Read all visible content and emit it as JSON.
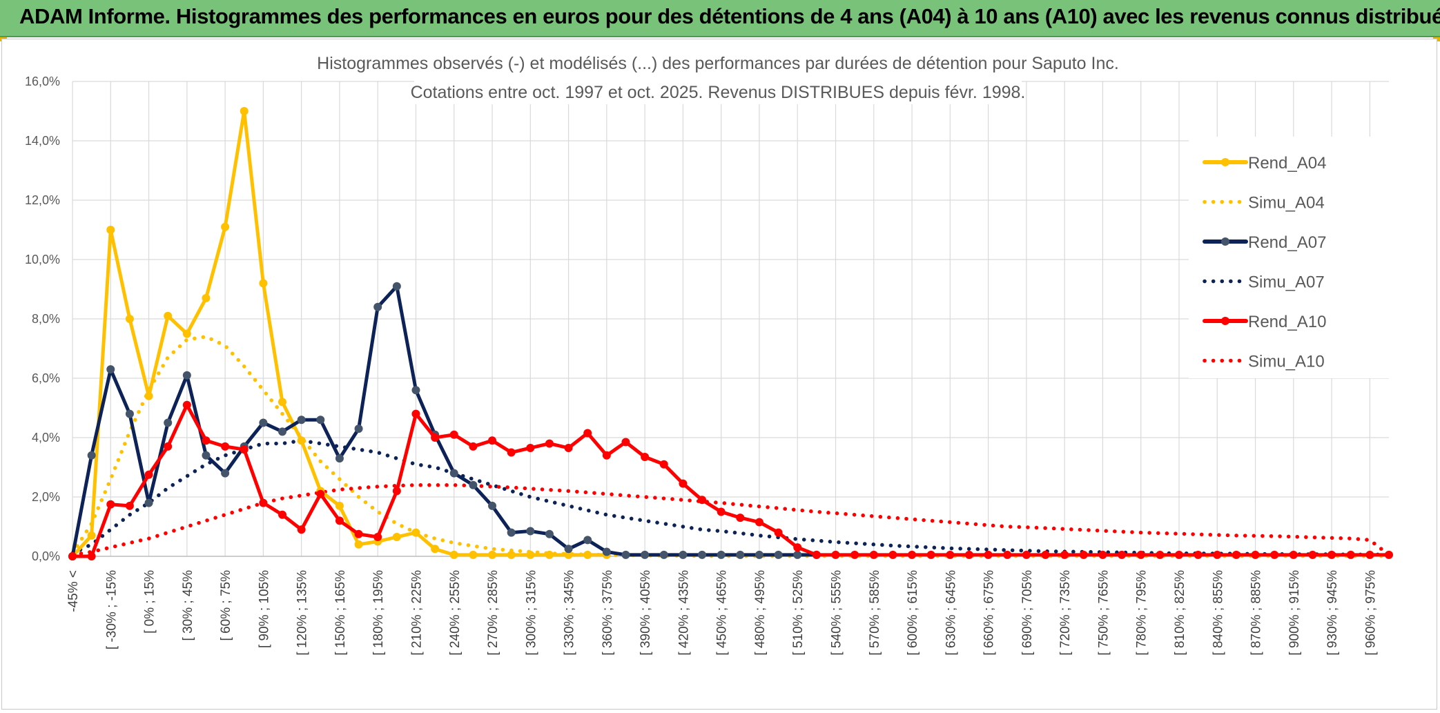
{
  "header": {
    "title": "ADAM Informe. Histogrammes des performances en euros pour des détentions de 4 ans (A04) à 10 ans (A10) avec les revenus connus distribués"
  },
  "colors": {
    "banner": "#79c27a",
    "A04": "#ffc000",
    "A07": "#0d2357",
    "A07_marker": "#44546a",
    "A10": "#ff0000",
    "grid": "#d9d9d9"
  },
  "chart_data": {
    "type": "line",
    "title": [
      "Histogrammes observés (-) et modélisés (...) des performances par durées de détention pour Saputo Inc.",
      "Cotations entre oct. 1997 et oct. 2025. Revenus DISTRIBUES depuis févr. 1998."
    ],
    "xlabel": "",
    "ylabel": "",
    "ylim": [
      0,
      16
    ],
    "y_ticks": [
      "0,0%",
      "2,0%",
      "4,0%",
      "6,0%",
      "8,0%",
      "10,0%",
      "12,0%",
      "14,0%",
      "16,0%"
    ],
    "y_unit": "%",
    "grid": true,
    "legend_position": "right",
    "x_labels": [
      "-45% <",
      "[ -30% ; -15%",
      "[ 0% ; 15%",
      "[ 30% ; 45%",
      "[ 60% ; 75%",
      "[ 90% ; 105%",
      "[ 120% ; 135%",
      "[ 150% ; 165%",
      "[ 180% ; 195%",
      "[ 210% ; 225%",
      "[ 240% ; 255%",
      "[ 270% ; 285%",
      "[ 300% ; 315%",
      "[ 330% ; 345%",
      "[ 360% ; 375%",
      "[ 390% ; 405%",
      "[ 420% ; 435%",
      "[ 450% ; 465%",
      "[ 480% ; 495%",
      "[ 510% ; 525%",
      "[ 540% ; 555%",
      "[ 570% ; 585%",
      "[ 600% ; 615%",
      "[ 630% ; 645%",
      "[ 660% ; 675%",
      "[ 690% ; 705%",
      "[ 720% ; 735%",
      "[ 750% ; 765%",
      "[ 780% ; 795%",
      "[ 810% ; 825%",
      "[ 840% ; 855%",
      "[ 870% ; 885%",
      "[ 900% ; 915%",
      "[ 930% ; 945%",
      "[ 960% ; 975%"
    ],
    "series": [
      {
        "name": "Rend_A04",
        "style": "solid",
        "markers": true,
        "color": "#ffc000",
        "marker_color": "#ffc000",
        "values": [
          0,
          0.7,
          11.0,
          8.0,
          5.4,
          8.1,
          7.5,
          8.7,
          11.1,
          15.0,
          9.2,
          5.2,
          3.9,
          2.2,
          1.7,
          0.4,
          0.5,
          0.65,
          0.8,
          0.25,
          0.05,
          0.05,
          0.05,
          0.05,
          0.05,
          0.05,
          0.05,
          0.05,
          0.05
        ]
      },
      {
        "name": "Simu_A04",
        "style": "dotted",
        "markers": false,
        "color": "#ffc000",
        "values": [
          0.1,
          1.1,
          2.6,
          4.2,
          5.6,
          6.7,
          7.3,
          7.4,
          7.1,
          6.4,
          5.6,
          4.8,
          4.0,
          3.2,
          2.6,
          2.0,
          1.5,
          1.1,
          0.8,
          0.6,
          0.45,
          0.35,
          0.25,
          0.2,
          0.15,
          0.1,
          0.08,
          0.06,
          0.05,
          0.04,
          0.03,
          0.02,
          0.02,
          0.01,
          0.01,
          0.01,
          0.01,
          0.01,
          0.01,
          0.01,
          0.01,
          0.01,
          0.01,
          0.01,
          0.01,
          0.01,
          0.01,
          0.01,
          0.01,
          0.01,
          0.01,
          0.01,
          0.01,
          0.01,
          0.01,
          0.01,
          0.01,
          0.01,
          0.01,
          0.01,
          0.01,
          0.01,
          0.01,
          0.01,
          0.01,
          0.01,
          0.01,
          0.01,
          0.01,
          0.01
        ]
      },
      {
        "name": "Rend_A07",
        "style": "solid",
        "markers": true,
        "color": "#0d2357",
        "marker_color": "#44546a",
        "values": [
          0,
          3.4,
          6.3,
          4.8,
          1.8,
          4.5,
          6.1,
          3.4,
          2.8,
          3.7,
          4.5,
          4.2,
          4.6,
          4.6,
          3.3,
          4.3,
          8.4,
          9.1,
          5.6,
          4.1,
          2.8,
          2.4,
          1.7,
          0.8,
          0.85,
          0.75,
          0.25,
          0.55,
          0.15,
          0.05,
          0.05,
          0.05,
          0.05,
          0.05,
          0.05,
          0.05,
          0.05,
          0.05,
          0.05,
          0.05
        ]
      },
      {
        "name": "Simu_A07",
        "style": "dotted",
        "markers": false,
        "color": "#0d2357",
        "values": [
          0.1,
          0.4,
          0.9,
          1.4,
          1.8,
          2.3,
          2.7,
          3.1,
          3.4,
          3.6,
          3.8,
          3.8,
          3.9,
          3.8,
          3.7,
          3.6,
          3.5,
          3.3,
          3.1,
          3.0,
          2.8,
          2.6,
          2.4,
          2.2,
          2.0,
          1.85,
          1.7,
          1.55,
          1.4,
          1.3,
          1.2,
          1.1,
          1.0,
          0.9,
          0.85,
          0.78,
          0.7,
          0.64,
          0.58,
          0.53,
          0.48,
          0.44,
          0.4,
          0.36,
          0.33,
          0.3,
          0.27,
          0.25,
          0.23,
          0.21,
          0.19,
          0.17,
          0.16,
          0.15,
          0.14,
          0.13,
          0.12,
          0.11,
          0.1,
          0.1,
          0.09,
          0.09,
          0.08,
          0.08,
          0.07,
          0.07,
          0.07,
          0.06,
          0.06,
          0.06
        ]
      },
      {
        "name": "Rend_A10",
        "style": "solid",
        "markers": true,
        "color": "#ff0000",
        "marker_color": "#ff0000",
        "values": [
          0,
          0,
          1.75,
          1.7,
          2.75,
          3.7,
          5.1,
          3.9,
          3.7,
          3.6,
          1.8,
          1.4,
          0.9,
          2.1,
          1.2,
          0.75,
          0.65,
          2.2,
          4.8,
          4.0,
          4.1,
          3.7,
          3.9,
          3.5,
          3.65,
          3.8,
          3.65,
          4.15,
          3.4,
          3.85,
          3.35,
          3.1,
          2.45,
          1.9,
          1.5,
          1.3,
          1.15,
          0.8,
          0.3,
          0.05,
          0.05,
          0.05,
          0.05,
          0.05,
          0.05,
          0.05,
          0.05,
          0.05,
          0.05,
          0.05,
          0.05,
          0.05,
          0.05,
          0.05,
          0.05,
          0.05,
          0.05,
          0.05,
          0.05,
          0.05,
          0.05,
          0.05,
          0.05,
          0.05,
          0.05,
          0.05,
          0.05,
          0.05,
          0.05,
          0.05
        ]
      },
      {
        "name": "Simu_A10",
        "style": "dotted",
        "markers": false,
        "color": "#ff0000",
        "values": [
          0.05,
          0.15,
          0.3,
          0.45,
          0.6,
          0.8,
          1.0,
          1.2,
          1.4,
          1.6,
          1.8,
          1.95,
          2.05,
          2.15,
          2.25,
          2.3,
          2.35,
          2.38,
          2.4,
          2.4,
          2.4,
          2.38,
          2.35,
          2.32,
          2.28,
          2.24,
          2.2,
          2.15,
          2.1,
          2.05,
          2.0,
          1.95,
          1.9,
          1.85,
          1.8,
          1.74,
          1.68,
          1.62,
          1.56,
          1.5,
          1.45,
          1.4,
          1.35,
          1.3,
          1.25,
          1.2,
          1.15,
          1.1,
          1.05,
          1.0,
          0.98,
          0.95,
          0.92,
          0.89,
          0.86,
          0.83,
          0.8,
          0.78,
          0.76,
          0.74,
          0.72,
          0.7,
          0.69,
          0.68,
          0.66,
          0.64,
          0.62,
          0.6,
          0.55,
          0.05
        ]
      }
    ]
  }
}
